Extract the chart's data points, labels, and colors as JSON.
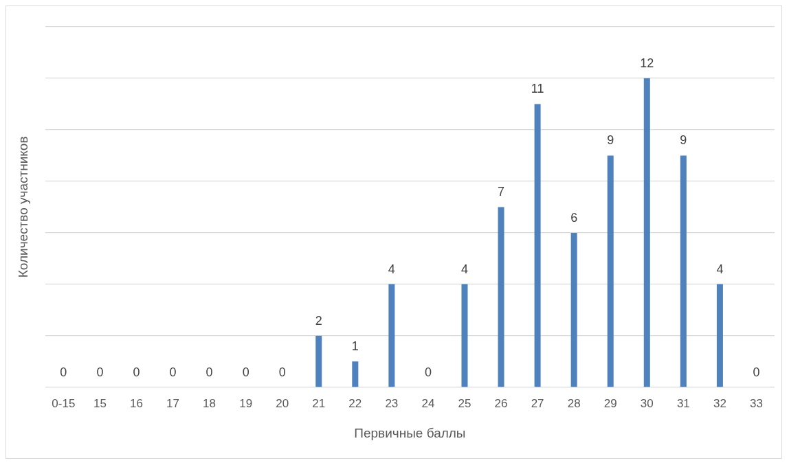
{
  "chart_data": {
    "type": "bar",
    "xlabel": "Первичные баллы",
    "ylabel": "Количество участников",
    "categories": [
      "0-15",
      "15",
      "16",
      "17",
      "18",
      "19",
      "20",
      "21",
      "22",
      "23",
      "24",
      "25",
      "26",
      "27",
      "28",
      "29",
      "30",
      "31",
      "32",
      "33"
    ],
    "values": [
      0,
      0,
      0,
      0,
      0,
      0,
      0,
      2,
      1,
      4,
      0,
      4,
      7,
      11,
      6,
      9,
      12,
      9,
      4,
      0
    ],
    "color": "#4f81bd",
    "ylim": [
      0,
      14
    ],
    "yticks": [
      {
        "value": 0,
        "label": null
      },
      {
        "value": 2,
        "label": null
      },
      {
        "value": 4,
        "label": null
      },
      {
        "value": 6,
        "label": null
      },
      {
        "value": 8,
        "label": null
      },
      {
        "value": 10,
        "label": null
      },
      {
        "value": 12,
        "label": null
      },
      {
        "value": 14,
        "label": null
      }
    ],
    "grid": "y",
    "tick_labels": "x",
    "data_labels": true,
    "legend": false
  }
}
